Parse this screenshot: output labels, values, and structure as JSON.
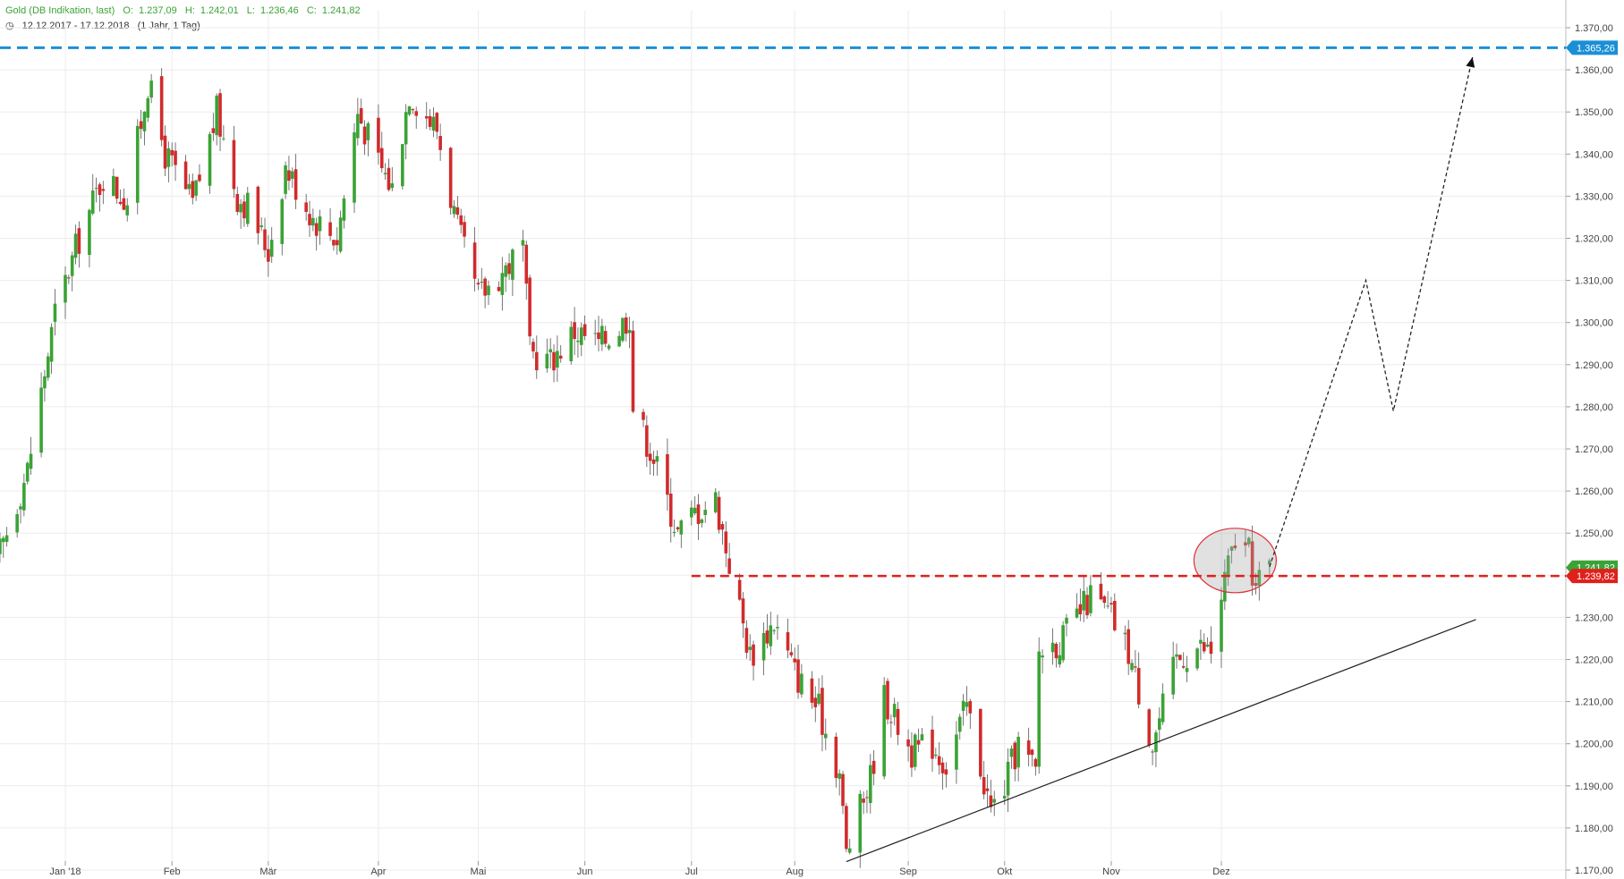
{
  "header": {
    "instrument": "Gold (DB Indikation, last)",
    "open_label": "O:",
    "open": "1.237,09",
    "high_label": "H:",
    "high": "1.242,01",
    "low_label": "L:",
    "low": "1.236,46",
    "close_label": "C:",
    "close": "1.241,82",
    "date_range": "12.12.2017 - 17.12.2018",
    "period": "(1 Jahr, 1 Tag)"
  },
  "chart_data": {
    "type": "candlestick",
    "ylim": [
      1165,
      1373
    ],
    "y_ticks": [
      1170,
      1180,
      1190,
      1200,
      1210,
      1220,
      1230,
      1240,
      1250,
      1260,
      1270,
      1280,
      1290,
      1300,
      1310,
      1320,
      1330,
      1340,
      1350,
      1360,
      1370
    ],
    "y_tick_labels": [
      "1.170,00",
      "1.180,00",
      "1.190,00",
      "1.200,00",
      "1.210,00",
      "1.220,00",
      "1.230,00",
      "1.240,00",
      "1.250,00",
      "1.260,00",
      "1.270,00",
      "1.280,00",
      "1.290,00",
      "1.300,00",
      "1.310,00",
      "1.320,00",
      "1.330,00",
      "1.340,00",
      "1.350,00",
      "1.360,00",
      "1.370,00"
    ],
    "x_labels": [
      {
        "label": "Jan '18",
        "date": "2018-01-01"
      },
      {
        "label": "Feb",
        "date": "2018-02-01"
      },
      {
        "label": "Mär",
        "date": "2018-03-01"
      },
      {
        "label": "Apr",
        "date": "2018-04-02"
      },
      {
        "label": "Mai",
        "date": "2018-05-01"
      },
      {
        "label": "Jun",
        "date": "2018-06-01"
      },
      {
        "label": "Jul",
        "date": "2018-07-02"
      },
      {
        "label": "Aug",
        "date": "2018-08-01"
      },
      {
        "label": "Sep",
        "date": "2018-09-03"
      },
      {
        "label": "Okt",
        "date": "2018-10-01"
      },
      {
        "label": "Nov",
        "date": "2018-11-01"
      },
      {
        "label": "Dez",
        "date": "2018-12-03"
      }
    ],
    "key_points": [
      [
        "2017-12-12",
        1243
      ],
      [
        "2017-12-21",
        1265
      ],
      [
        "2017-12-29",
        1302
      ],
      [
        "2018-01-05",
        1320
      ],
      [
        "2018-01-12",
        1335
      ],
      [
        "2018-01-19",
        1329
      ],
      [
        "2018-01-25",
        1357
      ],
      [
        "2018-01-30",
        1340
      ],
      [
        "2018-02-07",
        1328
      ],
      [
        "2018-02-14",
        1350
      ],
      [
        "2018-02-20",
        1330
      ],
      [
        "2018-02-23",
        1328
      ],
      [
        "2018-03-01",
        1317
      ],
      [
        "2018-03-06",
        1337
      ],
      [
        "2018-03-14",
        1325
      ],
      [
        "2018-03-21",
        1320
      ],
      [
        "2018-03-27",
        1350
      ],
      [
        "2018-04-02",
        1338
      ],
      [
        "2018-04-06",
        1332
      ],
      [
        "2018-04-11",
        1355
      ],
      [
        "2018-04-17",
        1348
      ],
      [
        "2018-04-19",
        1346
      ],
      [
        "2018-04-25",
        1322
      ],
      [
        "2018-05-01",
        1306
      ],
      [
        "2018-05-08",
        1312
      ],
      [
        "2018-05-14",
        1318
      ],
      [
        "2018-05-16",
        1293
      ],
      [
        "2018-05-22",
        1291
      ],
      [
        "2018-05-29",
        1298
      ],
      [
        "2018-06-05",
        1295
      ],
      [
        "2018-06-11",
        1299
      ],
      [
        "2018-06-14",
        1302
      ],
      [
        "2018-06-15",
        1280
      ],
      [
        "2018-06-21",
        1268
      ],
      [
        "2018-06-28",
        1250
      ],
      [
        "2018-07-03",
        1255
      ],
      [
        "2018-07-09",
        1258
      ],
      [
        "2018-07-13",
        1243
      ],
      [
        "2018-07-19",
        1221
      ],
      [
        "2018-07-26",
        1229
      ],
      [
        "2018-08-01",
        1217
      ],
      [
        "2018-08-08",
        1208
      ],
      [
        "2018-08-14",
        1193
      ],
      [
        "2018-08-16",
        1174
      ],
      [
        "2018-08-23",
        1192
      ],
      [
        "2018-08-27",
        1211
      ],
      [
        "2018-09-04",
        1198
      ],
      [
        "2018-09-10",
        1200
      ],
      [
        "2018-09-14",
        1195
      ],
      [
        "2018-09-20",
        1209
      ],
      [
        "2018-09-27",
        1184
      ],
      [
        "2018-10-01",
        1190
      ],
      [
        "2018-10-05",
        1200
      ],
      [
        "2018-10-10",
        1193
      ],
      [
        "2018-10-11",
        1222
      ],
      [
        "2018-10-18",
        1225
      ],
      [
        "2018-10-26",
        1235
      ],
      [
        "2018-11-01",
        1230
      ],
      [
        "2018-11-06",
        1222
      ],
      [
        "2018-11-13",
        1200
      ],
      [
        "2018-11-20",
        1220
      ],
      [
        "2018-11-26",
        1223
      ],
      [
        "2018-11-30",
        1222
      ],
      [
        "2018-12-04",
        1239
      ],
      [
        "2018-12-07",
        1248
      ],
      [
        "2018-12-11",
        1245
      ],
      [
        "2018-12-13",
        1237
      ],
      [
        "2018-12-17",
        1242
      ]
    ],
    "horizontal_lines": [
      {
        "value": 1365.26,
        "label": "1.365,26",
        "color": "#1a8fd6"
      },
      {
        "value": 1239.82,
        "label": "1.239,82",
        "color": "#e0211b"
      },
      {
        "value": 1241.82,
        "label": "1.241,82",
        "color": "#3aa335"
      }
    ],
    "trendline": {
      "start": [
        "2018-08-16",
        1172
      ],
      "end": [
        "2019-02-15",
        1229.5
      ]
    },
    "projection_path": [
      [
        "2018-12-17",
        1242
      ],
      [
        "2019-01-14",
        1310
      ],
      [
        "2019-01-22",
        1279
      ],
      [
        "2019-02-14",
        1363
      ]
    ],
    "highlight_circle": {
      "date": "2018-12-07",
      "value": 1243.5
    },
    "colors": {
      "up": "#3aa335",
      "down": "#d12b2b",
      "grid": "#ececec",
      "axis_text": "#444444"
    }
  }
}
